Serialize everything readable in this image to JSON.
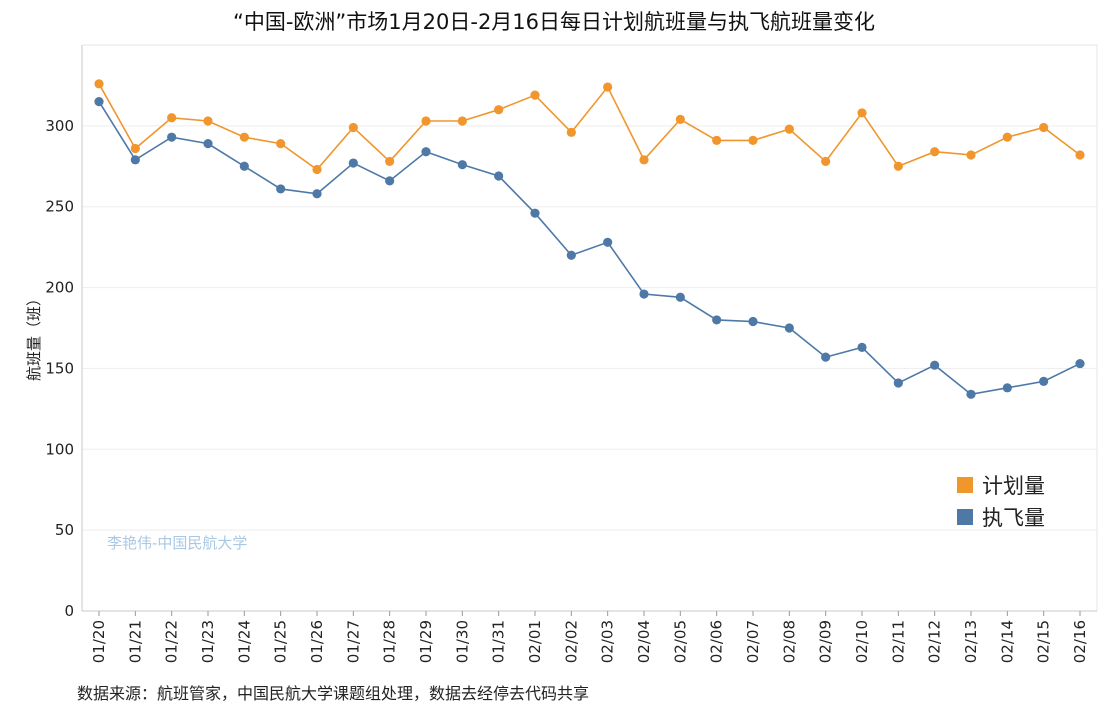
{
  "title": "“中国-欧洲”市场1月20日-2月16日每日计划航班量与执飞航班量变化",
  "source": "数据来源：航班管家，中国民航大学课题组处理，数据去经停去代码共享",
  "watermark": "李艳伟-中国民航大学",
  "chart_data": {
    "type": "line",
    "title": "“中国-欧洲”市场1月20日-2月16日每日计划航班量与执飞航班量变化",
    "ylabel": "航班量（班）",
    "xlabel": "",
    "ylim": [
      0,
      350
    ],
    "yticks": [
      0,
      50,
      100,
      150,
      200,
      250,
      300
    ],
    "grid": true,
    "legend_position": "right",
    "categories": [
      "01/20",
      "01/21",
      "01/22",
      "01/23",
      "01/24",
      "01/25",
      "01/26",
      "01/27",
      "01/28",
      "01/29",
      "01/30",
      "01/31",
      "02/01",
      "02/02",
      "02/03",
      "02/04",
      "02/05",
      "02/06",
      "02/07",
      "02/08",
      "02/09",
      "02/10",
      "02/11",
      "02/12",
      "02/13",
      "02/14",
      "02/15",
      "02/16"
    ],
    "series": [
      {
        "name": "计划量",
        "color": "#f0962d",
        "values": [
          326,
          286,
          305,
          303,
          293,
          289,
          273,
          299,
          278,
          303,
          303,
          310,
          319,
          296,
          324,
          279,
          304,
          291,
          291,
          298,
          278,
          308,
          275,
          284,
          282,
          293,
          299,
          282
        ]
      },
      {
        "name": "执飞量",
        "color": "#4e79a7",
        "values": [
          315,
          279,
          293,
          289,
          275,
          261,
          258,
          277,
          266,
          284,
          276,
          269,
          246,
          220,
          228,
          196,
          194,
          180,
          179,
          175,
          157,
          163,
          141,
          152,
          134,
          138,
          142,
          153
        ]
      }
    ]
  }
}
